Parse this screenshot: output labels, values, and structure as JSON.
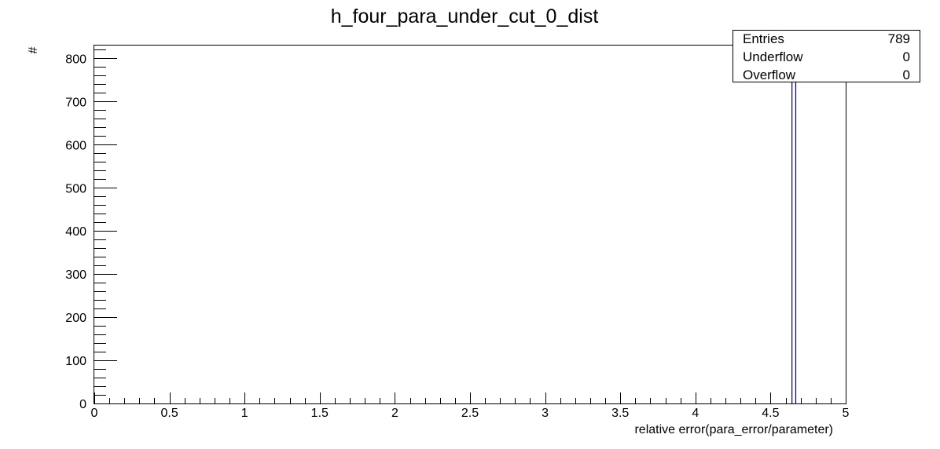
{
  "chart_data": {
    "type": "bar",
    "title": "h_four_para_under_cut_0_dist",
    "xlabel": "relative error(para_error/parameter)",
    "ylabel": "#",
    "xlim": [
      0,
      5
    ],
    "ylim": [
      0,
      830
    ],
    "x_ticks": [
      0,
      0.5,
      1,
      1.5,
      2,
      2.5,
      3,
      3.5,
      4,
      4.5,
      5
    ],
    "x_tick_labels": [
      "0",
      "0.5",
      "1",
      "1.5",
      "2",
      "2.5",
      "3",
      "3.5",
      "4",
      "4.5",
      "5"
    ],
    "y_ticks": [
      0,
      100,
      200,
      300,
      400,
      500,
      600,
      700,
      800
    ],
    "y_tick_labels": [
      "0",
      "100",
      "200",
      "300",
      "400",
      "500",
      "600",
      "700",
      "800"
    ],
    "series": [
      {
        "bins": [
          {
            "x_low": 4.64,
            "x_high": 4.665,
            "value": 789
          }
        ]
      }
    ],
    "grid": false,
    "legend": "none",
    "line_color": "#000080",
    "stats": {
      "entries_label": "Entries",
      "entries": "789",
      "underflow_label": "Underflow",
      "underflow": "0",
      "overflow_label": "Overflow",
      "overflow": "0"
    }
  }
}
